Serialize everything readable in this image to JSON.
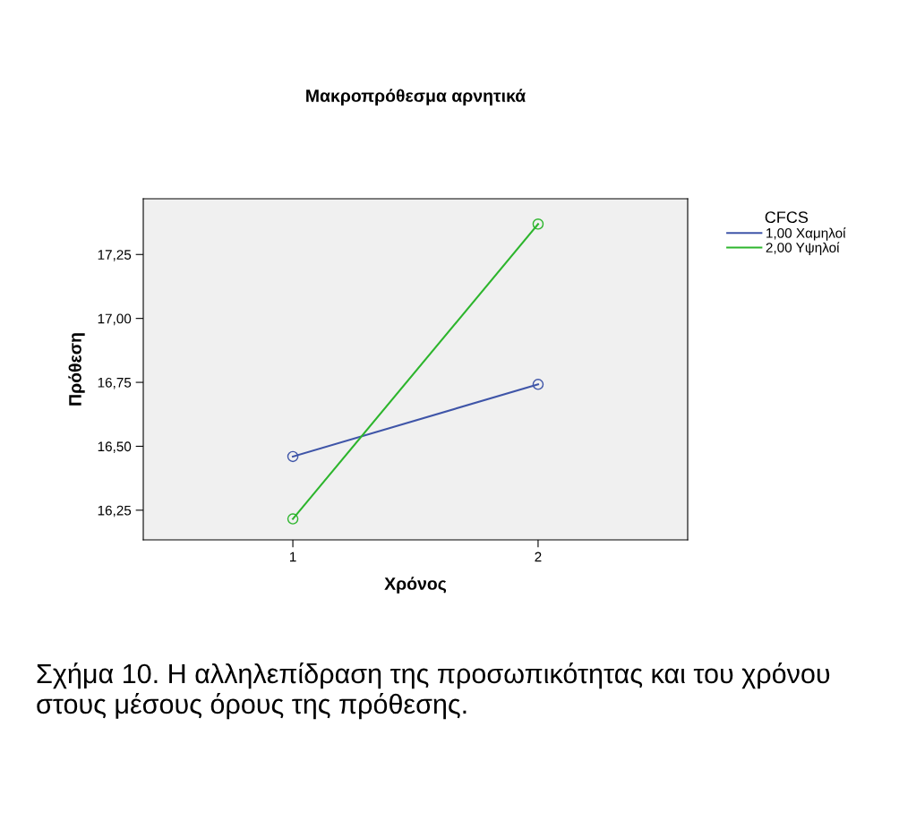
{
  "chart_data": {
    "type": "line",
    "title": "Μακροπρόθεσμα αρνητικά",
    "xlabel": "Χρόνος",
    "ylabel": "Πρόθεση",
    "legend_title": "CFCS",
    "x": [
      1,
      2
    ],
    "xlim": [
      0.39,
      2.61
    ],
    "xticks": [
      1,
      2
    ],
    "ylim": [
      16.134,
      17.468
    ],
    "yticks": [
      {
        "value": 16.25,
        "label": "16,25"
      },
      {
        "value": 16.5,
        "label": "16,50"
      },
      {
        "value": 16.75,
        "label": "16,75"
      },
      {
        "value": 17.0,
        "label": "17,00"
      },
      {
        "value": 17.25,
        "label": "17,25"
      }
    ],
    "series": [
      {
        "name": "1,00 Χαμηλοί",
        "color": "#3f55a8",
        "values": [
          16.46,
          16.742
        ]
      },
      {
        "name": "2,00 Υψηλοί",
        "color": "#2db52d",
        "values": [
          16.216,
          17.369
        ]
      }
    ],
    "marker": "circle",
    "line_style": "solid",
    "grid": false,
    "legend": "right",
    "annotations": [
      "Σχήμα 10. Η αλληλεπίδραση της προσωπικότητας και του χρόνου στους μέσους όρους της πρόθεσης."
    ]
  }
}
